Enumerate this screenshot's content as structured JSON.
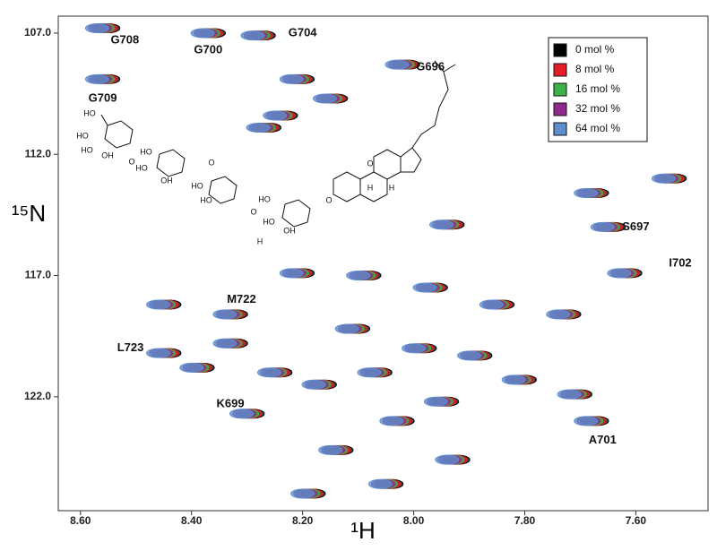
{
  "chart_data": {
    "type": "scatter",
    "xlabel": "¹H",
    "ylabel": "¹⁵N",
    "xlim": [
      8.64,
      7.47
    ],
    "ylim": [
      106.3,
      126.7
    ],
    "xticks": [
      {
        "value": 8.6,
        "label": "8.60"
      },
      {
        "value": 8.4,
        "label": "8.40"
      },
      {
        "value": 8.2,
        "label": "8.20"
      },
      {
        "value": 8.0,
        "label": "8.00"
      },
      {
        "value": 7.8,
        "label": "7.80"
      },
      {
        "value": 7.6,
        "label": "7.60"
      }
    ],
    "yticks": [
      {
        "value": 107,
        "label": "107.0"
      },
      {
        "value": 112,
        "label": "112.0"
      },
      {
        "value": 117,
        "label": "117.0"
      },
      {
        "value": 122,
        "label": "122.0"
      }
    ],
    "legend": "upper right",
    "series": [
      {
        "name": "0 mol %",
        "color": "#000000",
        "x": [
          8.55,
          8.36,
          8.27,
          8.01,
          8.55,
          8.2,
          8.14,
          8.23,
          8.26,
          7.64,
          7.53,
          7.67,
          7.93,
          7.61,
          8.32,
          8.44,
          8.44,
          8.32,
          8.29,
          7.67,
          8.2,
          8.08,
          7.96,
          7.84,
          7.72,
          8.1,
          7.98,
          7.88,
          8.06,
          7.8,
          8.16,
          7.94,
          8.02,
          7.7,
          8.13,
          7.92,
          8.18,
          8.04,
          8.24,
          8.38
        ],
        "values": [
          106.8,
          107.0,
          107.1,
          108.3,
          108.9,
          108.9,
          109.7,
          110.4,
          110.9,
          115.0,
          113.0,
          113.6,
          114.9,
          116.9,
          118.6,
          118.2,
          120.2,
          119.8,
          122.7,
          123.0,
          116.9,
          117.0,
          117.5,
          118.2,
          118.6,
          119.2,
          120.0,
          120.3,
          121.0,
          121.3,
          121.5,
          122.2,
          123.0,
          121.9,
          124.2,
          124.6,
          126.0,
          125.6,
          121.0,
          120.8
        ]
      },
      {
        "name": "8 mol %",
        "color": "#e41e26",
        "x": [
          8.555,
          8.365,
          8.275,
          8.015,
          8.555,
          8.205,
          8.145,
          8.235,
          8.265,
          7.645,
          7.535,
          7.675,
          7.935,
          7.615,
          8.325,
          8.445,
          8.445,
          8.325,
          8.295,
          7.675,
          8.205,
          8.085,
          7.965,
          7.845,
          7.725,
          8.105,
          7.985,
          7.885,
          8.065,
          7.805,
          8.165,
          7.945,
          8.025,
          7.705,
          8.135,
          7.925,
          8.185,
          8.045,
          8.245,
          8.385
        ],
        "values": [
          106.8,
          107.0,
          107.1,
          108.3,
          108.9,
          108.9,
          109.7,
          110.4,
          110.9,
          115.0,
          113.0,
          113.6,
          114.9,
          116.9,
          118.6,
          118.2,
          120.2,
          119.8,
          122.7,
          123.0,
          116.9,
          117.0,
          117.5,
          118.2,
          118.6,
          119.2,
          120.0,
          120.3,
          121.0,
          121.3,
          121.5,
          122.2,
          123.0,
          121.9,
          124.2,
          124.6,
          126.0,
          125.6,
          121.0,
          120.8
        ]
      },
      {
        "name": "16 mol %",
        "color": "#3cb34a",
        "x": [
          8.56,
          8.37,
          8.28,
          8.02,
          8.56,
          8.21,
          8.15,
          8.24,
          8.27,
          7.65,
          7.54,
          7.68,
          7.94,
          7.62,
          8.33,
          8.45,
          8.45,
          8.33,
          8.3,
          7.68,
          8.21,
          8.09,
          7.97,
          7.85,
          7.73,
          8.11,
          7.99,
          7.89,
          8.07,
          7.81,
          8.17,
          7.95,
          8.03,
          7.71,
          8.14,
          7.93,
          8.19,
          8.05,
          8.25,
          8.39
        ],
        "values": [
          106.8,
          107.0,
          107.1,
          108.3,
          108.9,
          108.9,
          109.7,
          110.4,
          110.9,
          115.0,
          113.0,
          113.6,
          114.9,
          116.9,
          118.6,
          118.2,
          120.2,
          119.8,
          122.7,
          123.0,
          116.9,
          117.0,
          117.5,
          118.2,
          118.6,
          119.2,
          120.0,
          120.3,
          121.0,
          121.3,
          121.5,
          122.2,
          123.0,
          121.9,
          124.2,
          124.6,
          126.0,
          125.6,
          121.0,
          120.8
        ]
      },
      {
        "name": "32 mol %",
        "color": "#8e2a8e",
        "x": [
          8.565,
          8.375,
          8.285,
          8.025,
          8.565,
          8.215,
          8.155,
          8.245,
          8.275,
          7.655,
          7.545,
          7.685,
          7.945,
          7.625,
          8.335,
          8.455,
          8.455,
          8.335,
          8.305,
          7.685,
          8.215,
          8.095,
          7.975,
          7.855,
          7.735,
          8.115,
          7.995,
          7.895,
          8.075,
          7.815,
          8.175,
          7.955,
          8.035,
          7.715,
          8.145,
          7.935,
          8.195,
          8.055,
          8.255,
          8.395
        ],
        "values": [
          106.8,
          107.0,
          107.1,
          108.3,
          108.9,
          108.9,
          109.7,
          110.4,
          110.9,
          115.0,
          113.0,
          113.6,
          114.9,
          116.9,
          118.6,
          118.2,
          120.2,
          119.8,
          122.7,
          123.0,
          116.9,
          117.0,
          117.5,
          118.2,
          118.6,
          119.2,
          120.0,
          120.3,
          121.0,
          121.3,
          121.5,
          122.2,
          123.0,
          121.9,
          124.2,
          124.6,
          126.0,
          125.6,
          121.0,
          120.8
        ]
      },
      {
        "name": "64 mol %",
        "color": "#5b8fd0",
        "x": [
          8.57,
          8.38,
          8.29,
          8.03,
          8.57,
          8.22,
          8.16,
          8.25,
          8.28,
          7.66,
          7.55,
          7.69,
          7.95,
          7.63,
          8.34,
          8.46,
          8.46,
          8.34,
          8.31,
          7.69,
          8.22,
          8.1,
          7.98,
          7.86,
          7.74,
          8.12,
          8.0,
          7.9,
          8.08,
          7.82,
          8.18,
          7.96,
          8.04,
          7.72,
          8.15,
          7.94,
          8.2,
          8.06,
          8.26,
          8.4
        ],
        "values": [
          106.8,
          107.0,
          107.1,
          108.3,
          108.9,
          108.9,
          109.7,
          110.4,
          110.9,
          115.0,
          113.0,
          113.6,
          114.9,
          116.9,
          118.6,
          118.2,
          120.2,
          119.8,
          122.7,
          123.0,
          116.9,
          117.0,
          117.5,
          118.2,
          118.6,
          119.2,
          120.0,
          120.3,
          121.0,
          121.3,
          121.5,
          122.2,
          123.0,
          121.9,
          124.2,
          124.6,
          126.0,
          125.6,
          121.0,
          120.8
        ]
      }
    ],
    "annotations": [
      {
        "text": "G708",
        "x": 8.52,
        "y": 107.3
      },
      {
        "text": "G700",
        "x": 8.37,
        "y": 107.7
      },
      {
        "text": "G704",
        "x": 8.2,
        "y": 107.0
      },
      {
        "text": "G696",
        "x": 7.97,
        "y": 108.4
      },
      {
        "text": "G709",
        "x": 8.56,
        "y": 109.7
      },
      {
        "text": "S697",
        "x": 7.6,
        "y": 115.0
      },
      {
        "text": "I702",
        "x": 7.52,
        "y": 116.5
      },
      {
        "text": "M722",
        "x": 8.31,
        "y": 118.0
      },
      {
        "text": "L723",
        "x": 8.51,
        "y": 120.0
      },
      {
        "text": "K699",
        "x": 8.33,
        "y": 122.3
      },
      {
        "text": "A701",
        "x": 7.66,
        "y": 123.8
      }
    ]
  },
  "structure": {
    "labels": [
      "HO",
      "HO",
      "HO",
      "OH",
      "O",
      "HO",
      "HO",
      "OH",
      "O",
      "HO",
      "HO",
      "O",
      "HO",
      "HO",
      "OH",
      "O",
      "O",
      "H",
      "H",
      "H"
    ]
  }
}
